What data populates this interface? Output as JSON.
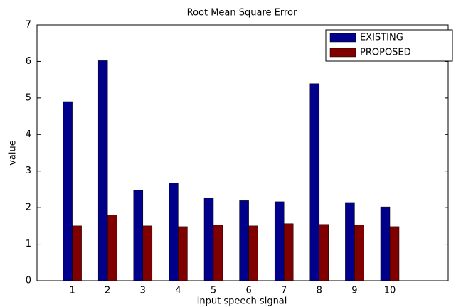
{
  "chart_data": {
    "type": "bar",
    "title": "Root Mean Square Error",
    "x_label": "Input speech signal",
    "y_label": "value",
    "categories": [
      "1",
      "2",
      "3",
      "4",
      "5",
      "6",
      "7",
      "8",
      "9",
      "10"
    ],
    "series": [
      {
        "name": "EXISTING",
        "color": "#00008b",
        "values": [
          4.9,
          6.02,
          2.47,
          2.67,
          2.26,
          2.19,
          2.16,
          5.39,
          2.14,
          2.02
        ]
      },
      {
        "name": "PROPOSED",
        "color": "#800000",
        "values": [
          1.5,
          1.8,
          1.5,
          1.48,
          1.52,
          1.5,
          1.56,
          1.54,
          1.52,
          1.48
        ]
      }
    ],
    "ylim": [
      0,
      7
    ],
    "yticks": [
      0,
      1,
      2,
      3,
      4,
      5,
      6,
      7
    ],
    "legend": "upper right"
  }
}
